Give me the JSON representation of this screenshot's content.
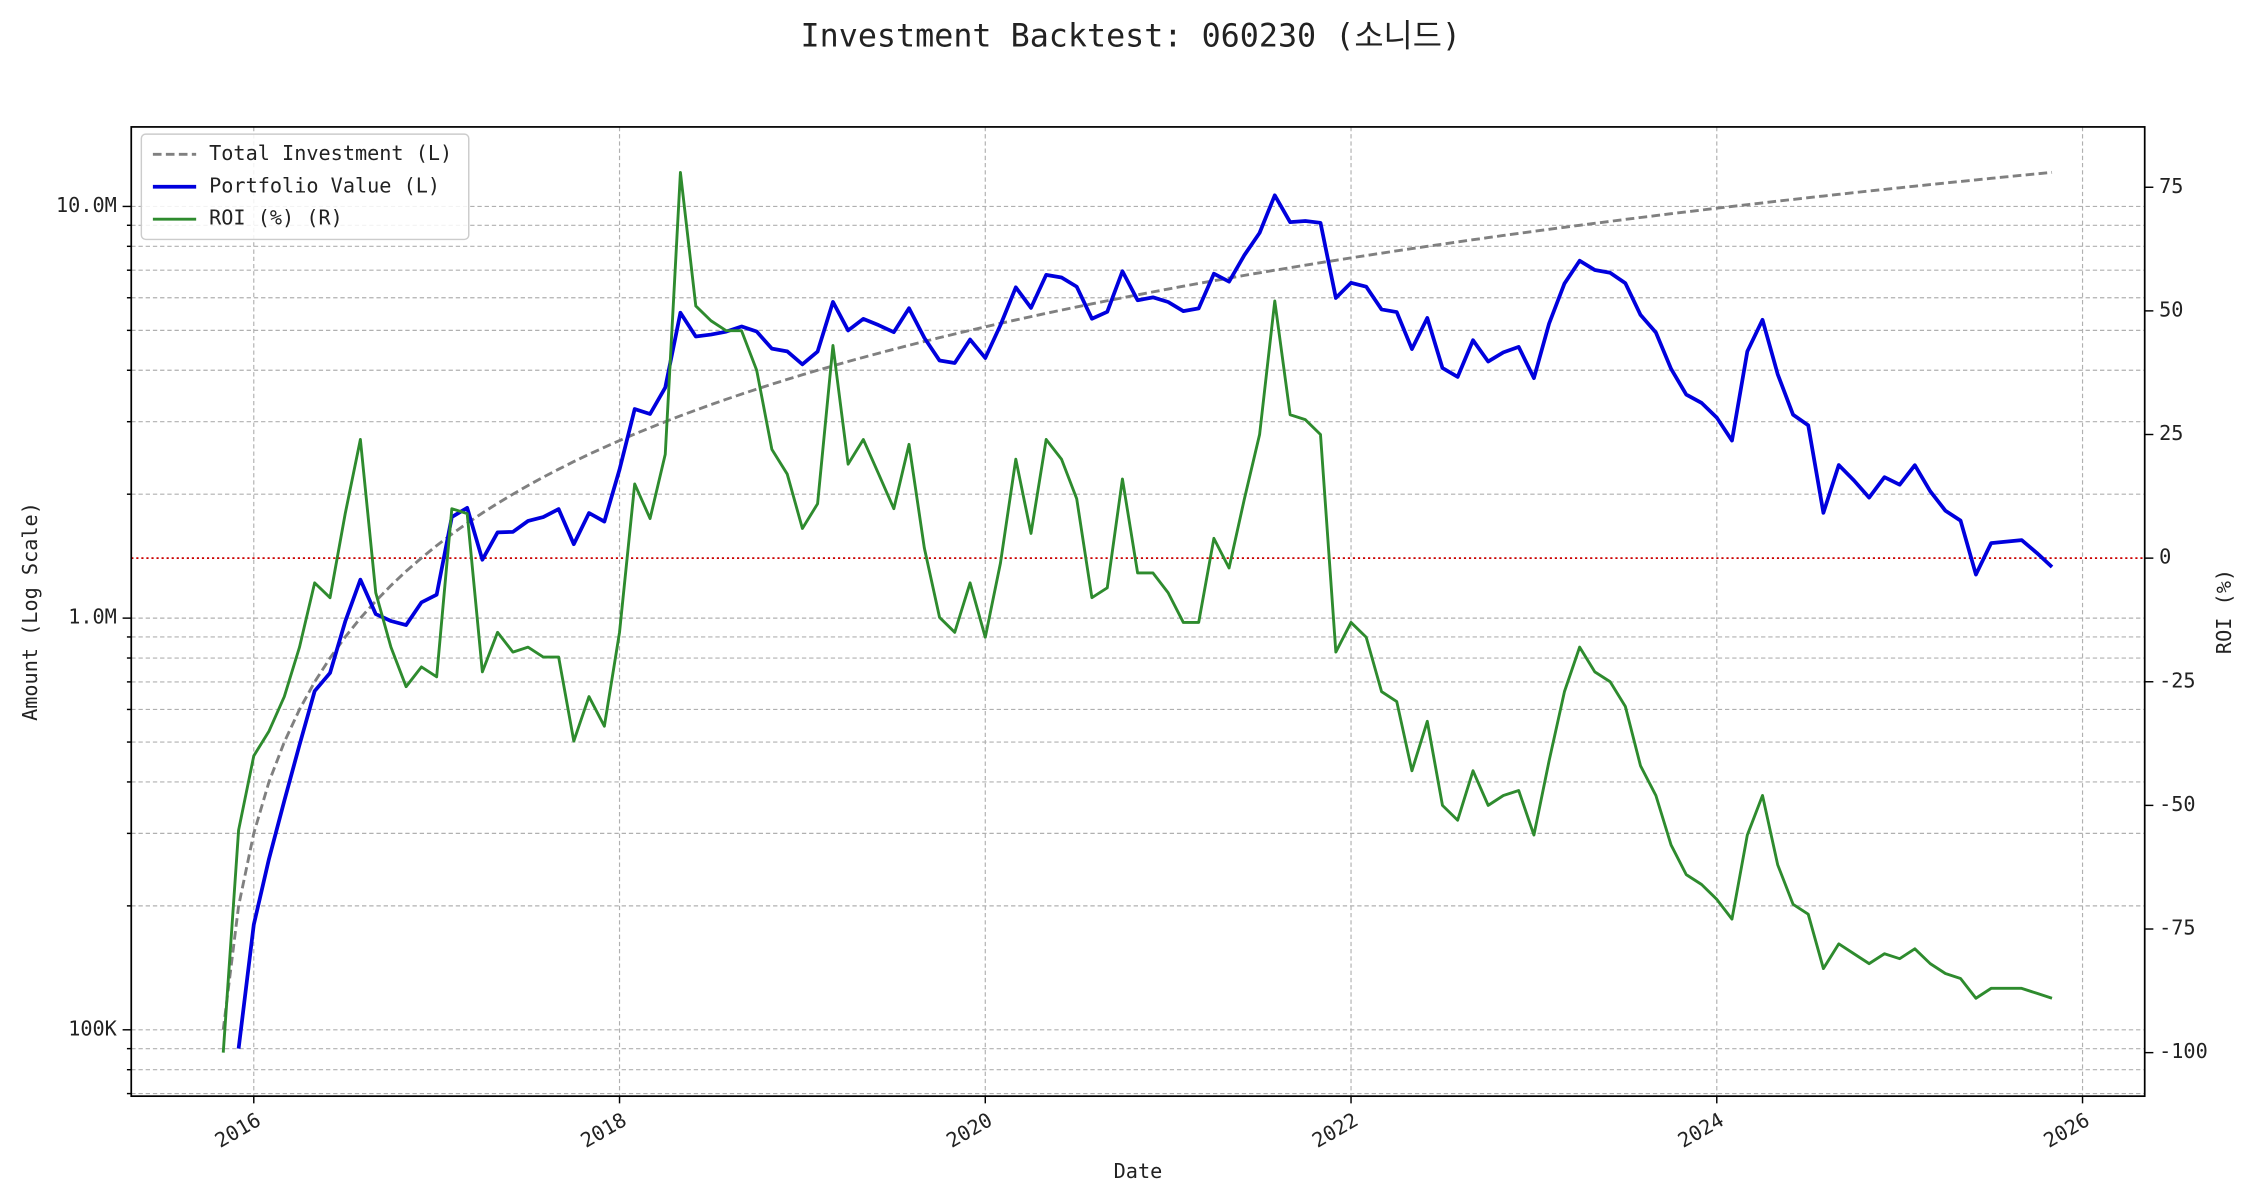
{
  "chart_data": {
    "type": "line",
    "title": "Investment Backtest: 060230 (소니드)",
    "xlabel": "Date",
    "ylabel": "Amount (Log Scale)",
    "y2label": "ROI (%)",
    "ylabel_color": "#0000cc",
    "y2label_color": "#228b22",
    "log_y": true,
    "grid": true,
    "legend": "upper left",
    "xlim": [
      2015.33,
      2026.34
    ],
    "xticks": [
      2016,
      2018,
      2020,
      2022,
      2024,
      2026
    ],
    "ylim": [
      69000,
      15600000
    ],
    "yticks": [
      {
        "value": 100000,
        "label": "100K"
      },
      {
        "value": 1000000,
        "label": "1.0M"
      },
      {
        "value": 10000000,
        "label": "10.0M"
      }
    ],
    "yminorticks": [
      70000,
      80000,
      90000,
      200000,
      300000,
      400000,
      500000,
      600000,
      700000,
      800000,
      900000,
      2000000,
      3000000,
      4000000,
      5000000,
      6000000,
      7000000,
      8000000,
      9000000
    ],
    "y2lim": [
      -108.8,
      87.2
    ],
    "y2ticks": [
      -100,
      -75,
      -50,
      -25,
      0,
      25,
      50,
      75
    ],
    "y2_reference_line": {
      "value": 0,
      "color": "#cc0000"
    },
    "x": [
      2015.833,
      2015.917,
      2016.0,
      2016.083,
      2016.167,
      2016.25,
      2016.333,
      2016.417,
      2016.5,
      2016.583,
      2016.667,
      2016.75,
      2016.833,
      2016.917,
      2017.0,
      2017.083,
      2017.167,
      2017.25,
      2017.333,
      2017.417,
      2017.5,
      2017.583,
      2017.667,
      2017.75,
      2017.833,
      2017.917,
      2018.0,
      2018.083,
      2018.167,
      2018.25,
      2018.333,
      2018.417,
      2018.5,
      2018.583,
      2018.667,
      2018.75,
      2018.833,
      2018.917,
      2019.0,
      2019.083,
      2019.167,
      2019.25,
      2019.333,
      2019.417,
      2019.5,
      2019.583,
      2019.667,
      2019.75,
      2019.833,
      2019.917,
      2020.0,
      2020.083,
      2020.167,
      2020.25,
      2020.333,
      2020.417,
      2020.5,
      2020.583,
      2020.667,
      2020.75,
      2020.833,
      2020.917,
      2021.0,
      2021.083,
      2021.167,
      2021.25,
      2021.333,
      2021.417,
      2021.5,
      2021.583,
      2021.667,
      2021.75,
      2021.833,
      2021.917,
      2022.0,
      2022.083,
      2022.167,
      2022.25,
      2022.333,
      2022.417,
      2022.5,
      2022.583,
      2022.667,
      2022.75,
      2022.833,
      2022.917,
      2023.0,
      2023.083,
      2023.167,
      2023.25,
      2023.333,
      2023.417,
      2023.5,
      2023.583,
      2023.667,
      2023.75,
      2023.833,
      2023.917,
      2024.0,
      2024.083,
      2024.167,
      2024.25,
      2024.333,
      2024.417,
      2024.5,
      2024.583,
      2024.667,
      2024.75,
      2024.833,
      2024.917,
      2025.0,
      2025.083,
      2025.167,
      2025.25,
      2025.333,
      2025.417,
      2025.5,
      2025.583,
      2025.667,
      2025.75,
      2025.833
    ],
    "series": [
      {
        "name": "Total Investment (L)",
        "color": "#808080",
        "dashed": true,
        "width": 2,
        "axis": "y",
        "values": [
          100000,
          200000,
          300000,
          400000,
          500000,
          600000,
          700000,
          800000,
          900000,
          1000000,
          1100000,
          1200000,
          1300000,
          1400000,
          1500000,
          1600000,
          1700000,
          1800000,
          1900000,
          2000000,
          2100000,
          2200000,
          2300000,
          2400000,
          2500000,
          2600000,
          2700000,
          2800000,
          2900000,
          3000000,
          3100000,
          3200000,
          3300000,
          3400000,
          3500000,
          3600000,
          3700000,
          3800000,
          3900000,
          4000000,
          4100000,
          4200000,
          4300000,
          4400000,
          4500000,
          4600000,
          4700000,
          4800000,
          4900000,
          5000000,
          5100000,
          5200000,
          5300000,
          5400000,
          5500000,
          5600000,
          5700000,
          5800000,
          5900000,
          6000000,
          6100000,
          6200000,
          6300000,
          6400000,
          6500000,
          6600000,
          6700000,
          6800000,
          6900000,
          7000000,
          7100000,
          7200000,
          7300000,
          7400000,
          7500000,
          7600000,
          7700000,
          7800000,
          7900000,
          8000000,
          8100000,
          8200000,
          8300000,
          8400000,
          8500000,
          8600000,
          8700000,
          8800000,
          8900000,
          9000000,
          9100000,
          9200000,
          9300000,
          9400000,
          9500000,
          9600000,
          9700000,
          9800000,
          9900000,
          10000000,
          10100000,
          10200000,
          10300000,
          10400000,
          10500000,
          10600000,
          10700000,
          10800000,
          10900000,
          11000000,
          11100000,
          11200000,
          11300000,
          11400000,
          11500000,
          11600000,
          11700000,
          11800000,
          11900000,
          12000000,
          12100000
        ]
      },
      {
        "name": "Portfolio Value (L)",
        "color": "#0000dd",
        "dashed": false,
        "width": 2.6,
        "axis": "y",
        "values": [
          null,
          90000,
          180000,
          260000,
          360000,
          492000,
          665000,
          736000,
          981000,
          1240000,
          1023000,
          984000,
          962000,
          1092000,
          1140000,
          1760000,
          1853000,
          1386000,
          1615000,
          1620000,
          1722000,
          1760000,
          1840000,
          1512000,
          1800000,
          1716000,
          2295000,
          3220000,
          3132000,
          3630000,
          5518000,
          4832000,
          4884000,
          4964000,
          5110000,
          4968000,
          4514000,
          4446000,
          4134000,
          4440000,
          5863000,
          4998000,
          5332000,
          5148000,
          4950000,
          5658000,
          4794000,
          4224000,
          4165000,
          4750000,
          4284000,
          5148000,
          6360000,
          5670000,
          6820000,
          6720000,
          6384000,
          5336000,
          5546000,
          6960000,
          5917000,
          6014000,
          5859000,
          5568000,
          5655000,
          6864000,
          6566000,
          7616000,
          8625000,
          10640000,
          9159000,
          9216000,
          9125000,
          5994000,
          6525000,
          6384000,
          5621000,
          5538000,
          4503000,
          5360000,
          4050000,
          3854000,
          4731000,
          4200000,
          4420000,
          4558000,
          3828000,
          5192000,
          6497000,
          7380000,
          7007000,
          6900000,
          6510000,
          5452000,
          4940000,
          4032000,
          3492000,
          3332000,
          3069000,
          2700000,
          4444000,
          5304000,
          3914000,
          3120000,
          2940000,
          1802000,
          2354000,
          2160000,
          1962000,
          2200000,
          2109000,
          2352000,
          2034000,
          1824000,
          1725000,
          1276000,
          1521000,
          1534000,
          1547000,
          1440000,
          1331000
        ]
      },
      {
        "name": "ROI (%) (R)",
        "color": "#2e8b2e",
        "dashed": false,
        "width": 2,
        "axis": "y2",
        "values": [
          -100,
          -55,
          -40,
          -35,
          -28,
          -18,
          -5,
          -8,
          9,
          24,
          -7,
          -18,
          -26,
          -22,
          -24,
          10,
          9,
          -23,
          -15,
          -19,
          -18,
          -20,
          -20,
          -37,
          -28,
          -34,
          -15,
          15,
          8,
          21,
          78,
          51,
          48,
          46,
          46,
          38,
          22,
          17,
          6,
          11,
          43,
          19,
          24,
          17,
          10,
          23,
          2,
          -12,
          -15,
          -5,
          -16,
          -1,
          20,
          5,
          24,
          20,
          12,
          -8,
          -6,
          16,
          -3,
          -3,
          -7,
          -13,
          -13,
          4,
          -2,
          12,
          25,
          52,
          29,
          28,
          25,
          -19,
          -13,
          -16,
          -27,
          -29,
          -43,
          -33,
          -50,
          -53,
          -43,
          -50,
          -48,
          -47,
          -56,
          -41,
          -27,
          -18,
          -23,
          -25,
          -30,
          -42,
          -48,
          -58,
          -64,
          -66,
          -69,
          -73,
          -56,
          -48,
          -62,
          -70,
          -72,
          -83,
          -78,
          -80,
          -82,
          -80,
          -81,
          -79,
          -82,
          -84,
          -85,
          -89,
          -87,
          -87,
          -87,
          -88,
          -89
        ]
      }
    ]
  }
}
